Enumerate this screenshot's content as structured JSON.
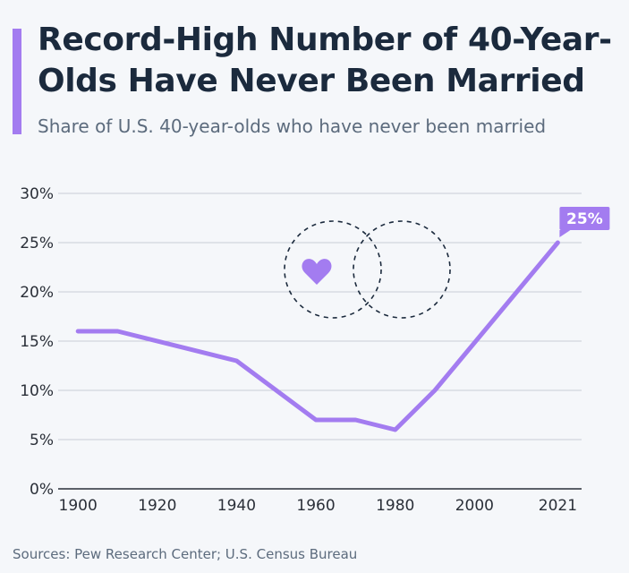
{
  "header": {
    "title": "Record-High Number of 40-Year-Olds Have Never Been Married",
    "subtitle": "Share of U.S. 40-year-olds who have never been married"
  },
  "footer": {
    "source": "Sources: Pew Research Center; U.S. Census Bureau"
  },
  "colors": {
    "accent": "#a37cf0",
    "title": "#1b2a3d",
    "grid": "#c9ced6"
  },
  "icons": [
    "heart-icon",
    "dashed-circle-icon",
    "dashed-circle-icon"
  ],
  "chart_data": {
    "type": "line",
    "title": "Record-High Number of 40-Year-Olds Have Never Been Married",
    "subtitle": "Share of U.S. 40-year-olds who have never been married",
    "xlabel": "",
    "ylabel": "",
    "x": [
      1900,
      1910,
      1940,
      1960,
      1970,
      1980,
      1990,
      2021
    ],
    "series": [
      {
        "values": [
          16,
          16,
          13,
          7,
          7,
          6,
          10,
          25
        ]
      }
    ],
    "x_ticks": [
      "1900",
      "1920",
      "1940",
      "1960",
      "1980",
      "2000",
      "2021"
    ],
    "y_ticks": [
      "0%",
      "5%",
      "10%",
      "15%",
      "20%",
      "25%",
      "30%"
    ],
    "ylim": [
      0,
      30
    ],
    "grid": "horizontal",
    "annotations": [
      {
        "x": 2021,
        "label": "25%"
      }
    ]
  }
}
